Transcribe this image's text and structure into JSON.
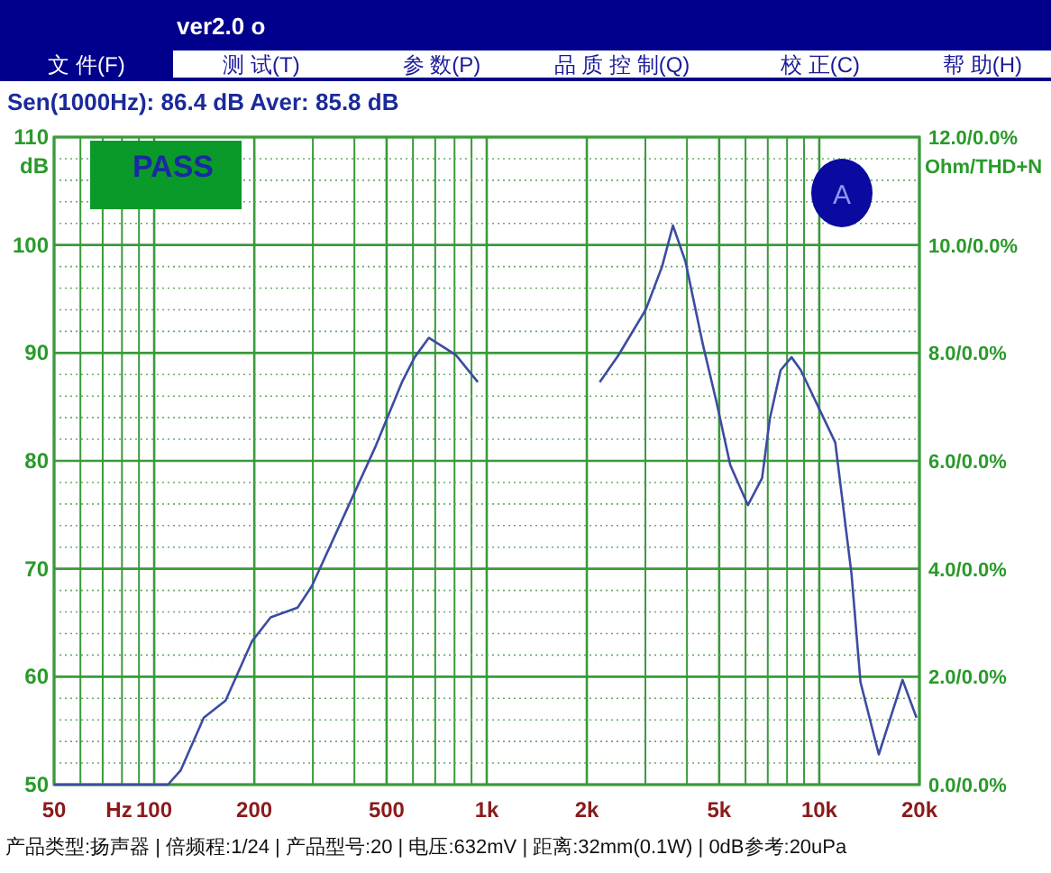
{
  "chart_data": {
    "type": "line",
    "title": "ver2.0 o",
    "subtitle": "Sen(1000Hz): 86.4 dB   Aver: 85.8 dB",
    "xlabel": "Hz",
    "ylabel": "dB",
    "y2label": "Ohm/THD+N",
    "annotations": [
      "文 件(F)",
      "测 试(T)",
      "参 数(P)",
      "品 质 控 制(Q)",
      "校 正(C)",
      "帮 助(H)",
      "PASS",
      "A",
      "产品类型:扬声器 | 倍频程:1/24 | 产品型号:20 | 电压:632mV | 距离:32mm(0.1W) | 0dB参考:20uPa",
      "12.0/0.0%",
      "10.0/0.0%",
      "8.0/0.0%",
      "6.0/0.0%",
      "4.0/0.0%",
      "2.0/0.0%",
      "0.0/0.0%"
    ],
    "log": "x",
    "grid": true,
    "xlim": [
      50,
      20000
    ],
    "xticks": [
      50,
      {
        "value": 60,
        "label": null
      },
      {
        "value": 70,
        "label": null
      },
      {
        "value": 80,
        "label": null
      },
      {
        "value": 90,
        "label": null
      },
      100,
      200,
      {
        "value": 300,
        "label": null
      },
      {
        "value": 400,
        "label": null
      },
      500,
      {
        "value": 600,
        "label": null
      },
      {
        "value": 700,
        "label": null
      },
      {
        "value": 800,
        "label": null
      },
      {
        "value": 900,
        "label": null
      },
      {
        "value": 1000,
        "label": "1k"
      },
      {
        "value": 2000,
        "label": "2k"
      },
      {
        "value": 3000,
        "label": null
      },
      {
        "value": 4000,
        "label": null
      },
      {
        "value": 5000,
        "label": "5k"
      },
      {
        "value": 6000,
        "label": null
      },
      {
        "value": 7000,
        "label": null
      },
      {
        "value": 8000,
        "label": null
      },
      {
        "value": 9000,
        "label": null
      },
      {
        "value": 10000,
        "label": "10k"
      },
      {
        "value": 20000,
        "label": "20k"
      }
    ],
    "ylim": [
      50,
      110
    ],
    "yticks": [
      50,
      {
        "value": 52,
        "label": null
      },
      {
        "value": 54,
        "label": null
      },
      {
        "value": 56,
        "label": null
      },
      {
        "value": 58,
        "label": null
      },
      60,
      {
        "value": 62,
        "label": null
      },
      {
        "value": 64,
        "label": null
      },
      {
        "value": 66,
        "label": null
      },
      {
        "value": 68,
        "label": null
      },
      70,
      {
        "value": 72,
        "label": null
      },
      {
        "value": 74,
        "label": null
      },
      {
        "value": 76,
        "label": null
      },
      {
        "value": 78,
        "label": null
      },
      80,
      {
        "value": 82,
        "label": null
      },
      {
        "value": 84,
        "label": null
      },
      {
        "value": 86,
        "label": null
      },
      {
        "value": 88,
        "label": null
      },
      90,
      {
        "value": 92,
        "label": null
      },
      {
        "value": 94,
        "label": null
      },
      {
        "value": 96,
        "label": null
      },
      {
        "value": 98,
        "label": null
      },
      100,
      {
        "value": 102,
        "label": null
      },
      {
        "value": 104,
        "label": null
      },
      {
        "value": 106,
        "label": null
      },
      {
        "value": 108,
        "label": null
      },
      110
    ],
    "series": [
      {
        "color": "#3c4ca0",
        "x": [
          50,
          110,
          120,
          141,
          164,
          197,
          224,
          270,
          298,
          381,
          461,
          556,
          607,
          670,
          808,
          940,
          1400,
          2186,
          2490,
          3006,
          3366,
          3630,
          3956,
          4480,
          4895,
          5400,
          6100,
          6730,
          7100,
          7650,
          8250,
          8800,
          11170,
          12500,
          13300,
          15100,
          17800,
          19600
        ],
        "values": [
          50,
          50,
          51.3,
          56.2,
          57.8,
          63.3,
          65.5,
          66.4,
          68.4,
          75.6,
          81.2,
          87.3,
          89.6,
          91.4,
          89.8,
          87.3,
          null,
          87.3,
          89.8,
          94.0,
          98.0,
          101.8,
          98.5,
          90.6,
          85.6,
          79.6,
          75.9,
          78.4,
          83.9,
          88.4,
          89.6,
          88.4,
          81.7,
          69.5,
          59.5,
          52.8,
          59.7,
          56.2
        ]
      }
    ]
  }
}
